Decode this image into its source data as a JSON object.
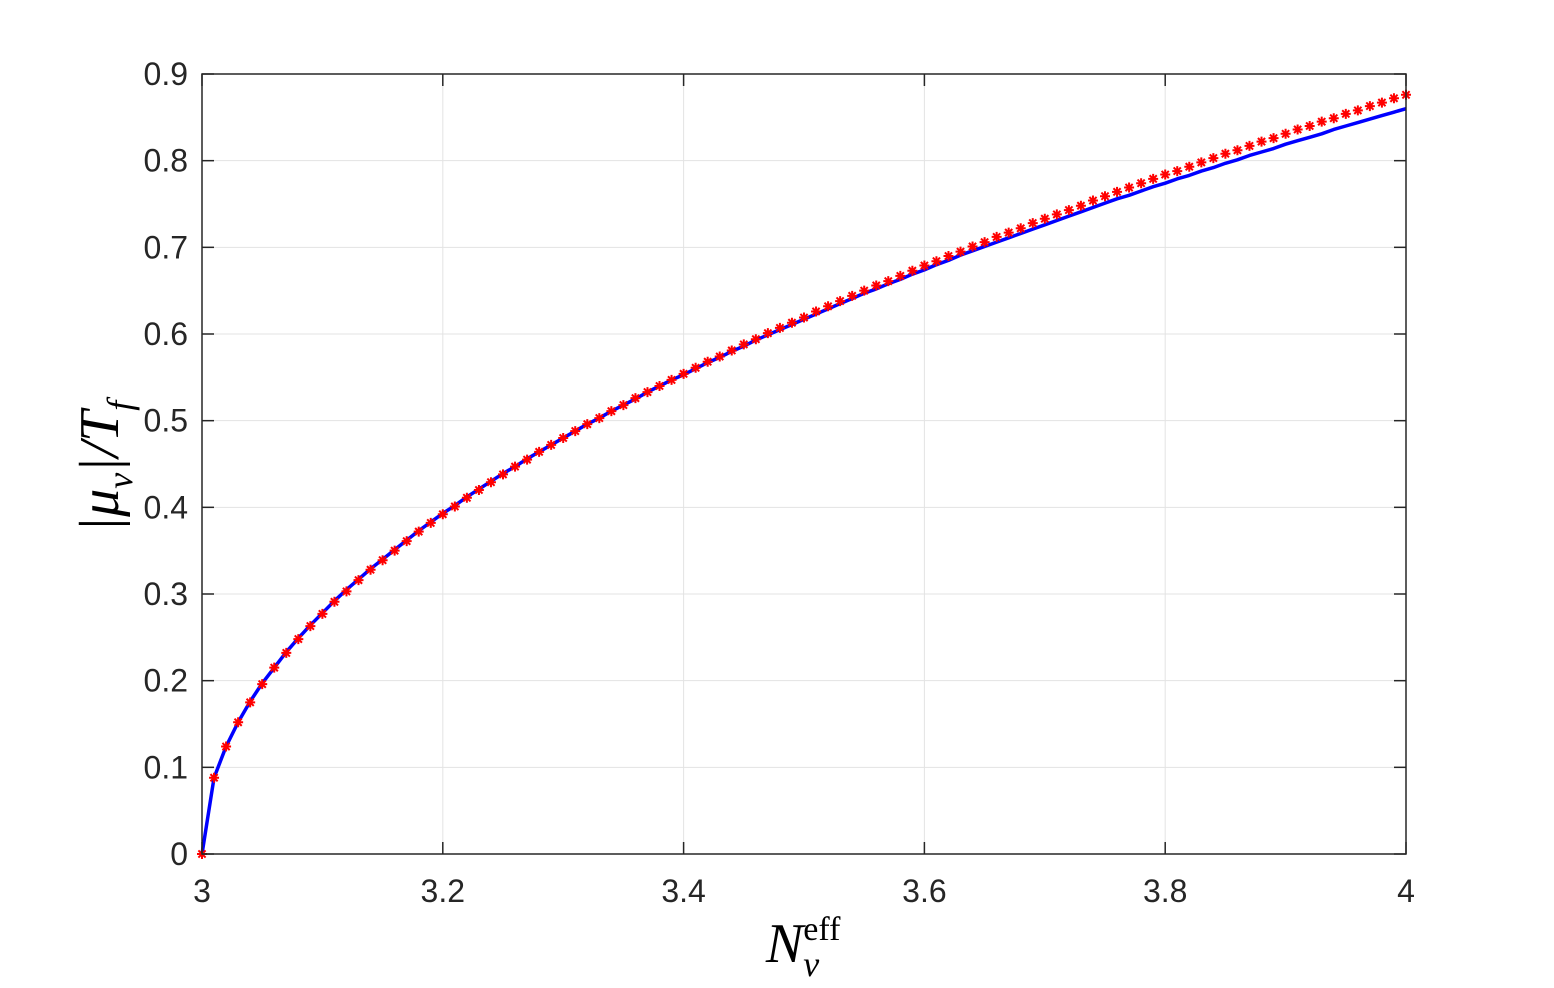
{
  "chart_data": {
    "type": "line",
    "xlabel": [
      {
        "text": "N"
      },
      {
        "text": "eff",
        "sup": true
      },
      {
        "text": "ν",
        "sub": true
      }
    ],
    "ylabel": [
      {
        "text": "|μ"
      },
      {
        "text": "ν",
        "sub": true
      },
      {
        "text": "|/T"
      },
      {
        "text": "f",
        "sub": true
      }
    ],
    "x": [
      3,
      3.01,
      3.02,
      3.03,
      3.04,
      3.05,
      3.06,
      3.07,
      3.08,
      3.09,
      3.1,
      3.11,
      3.12,
      3.13,
      3.14,
      3.15,
      3.16,
      3.17,
      3.18,
      3.19,
      3.2,
      3.21,
      3.22,
      3.23,
      3.24,
      3.25,
      3.26,
      3.27,
      3.28,
      3.29,
      3.3,
      3.31,
      3.32,
      3.33,
      3.34,
      3.35,
      3.36,
      3.37,
      3.38,
      3.39,
      3.4,
      3.41,
      3.42,
      3.43,
      3.44,
      3.45,
      3.46,
      3.47,
      3.48,
      3.49,
      3.5,
      3.51,
      3.52,
      3.53,
      3.54,
      3.55,
      3.56,
      3.57,
      3.58,
      3.59,
      3.6,
      3.61,
      3.62,
      3.63,
      3.64,
      3.65,
      3.66,
      3.67,
      3.68,
      3.69,
      3.7,
      3.71,
      3.72,
      3.73,
      3.74,
      3.75,
      3.76,
      3.77,
      3.78,
      3.79,
      3.8,
      3.81,
      3.82,
      3.83,
      3.84,
      3.85,
      3.86,
      3.87,
      3.88,
      3.89,
      3.9,
      3.91,
      3.92,
      3.93,
      3.94,
      3.95,
      3.96,
      3.97,
      3.98,
      3.99,
      4
    ],
    "series": [
      {
        "style": "line",
        "color": "#0000ff",
        "values": [
          0,
          0.088,
          0.124,
          0.152,
          0.176,
          0.197,
          0.215,
          0.233,
          0.249,
          0.264,
          0.278,
          0.292,
          0.305,
          0.317,
          0.329,
          0.34,
          0.351,
          0.362,
          0.373,
          0.383,
          0.393,
          0.402,
          0.412,
          0.421,
          0.43,
          0.439,
          0.447,
          0.456,
          0.464,
          0.472,
          0.48,
          0.488,
          0.496,
          0.503,
          0.511,
          0.518,
          0.525,
          0.533,
          0.54,
          0.547,
          0.553,
          0.56,
          0.567,
          0.573,
          0.58,
          0.586,
          0.593,
          0.599,
          0.605,
          0.611,
          0.617,
          0.623,
          0.629,
          0.635,
          0.641,
          0.647,
          0.652,
          0.658,
          0.663,
          0.669,
          0.674,
          0.68,
          0.685,
          0.691,
          0.696,
          0.701,
          0.706,
          0.711,
          0.716,
          0.721,
          0.726,
          0.731,
          0.736,
          0.741,
          0.746,
          0.751,
          0.756,
          0.76,
          0.765,
          0.77,
          0.774,
          0.779,
          0.783,
          0.788,
          0.792,
          0.797,
          0.801,
          0.806,
          0.81,
          0.814,
          0.819,
          0.823,
          0.827,
          0.831,
          0.836,
          0.84,
          0.844,
          0.848,
          0.852,
          0.856,
          0.86
        ]
      },
      {
        "style": "marker",
        "color": "#ff0000",
        "values": [
          0,
          0.088,
          0.124,
          0.152,
          0.175,
          0.196,
          0.215,
          0.232,
          0.248,
          0.263,
          0.277,
          0.291,
          0.303,
          0.316,
          0.328,
          0.339,
          0.35,
          0.361,
          0.372,
          0.382,
          0.392,
          0.401,
          0.411,
          0.42,
          0.429,
          0.438,
          0.447,
          0.455,
          0.464,
          0.472,
          0.48,
          0.488,
          0.496,
          0.503,
          0.511,
          0.518,
          0.526,
          0.533,
          0.54,
          0.547,
          0.554,
          0.561,
          0.568,
          0.574,
          0.581,
          0.588,
          0.594,
          0.601,
          0.607,
          0.613,
          0.619,
          0.626,
          0.632,
          0.638,
          0.644,
          0.65,
          0.656,
          0.661,
          0.667,
          0.673,
          0.679,
          0.684,
          0.69,
          0.695,
          0.701,
          0.706,
          0.712,
          0.717,
          0.722,
          0.728,
          0.733,
          0.738,
          0.743,
          0.748,
          0.754,
          0.759,
          0.764,
          0.769,
          0.774,
          0.779,
          0.784,
          0.788,
          0.793,
          0.798,
          0.803,
          0.808,
          0.812,
          0.817,
          0.822,
          0.826,
          0.831,
          0.836,
          0.84,
          0.845,
          0.849,
          0.854,
          0.858,
          0.863,
          0.867,
          0.872,
          0.876
        ]
      }
    ],
    "xlim": [
      3,
      4
    ],
    "ylim": [
      0,
      0.9
    ],
    "xticks": [
      3,
      3.2,
      3.4,
      3.6,
      3.8,
      4
    ],
    "yticks": [
      0,
      0.1,
      0.2,
      0.3,
      0.4,
      0.5,
      0.6,
      0.7,
      0.8,
      0.9
    ],
    "grid": true
  }
}
